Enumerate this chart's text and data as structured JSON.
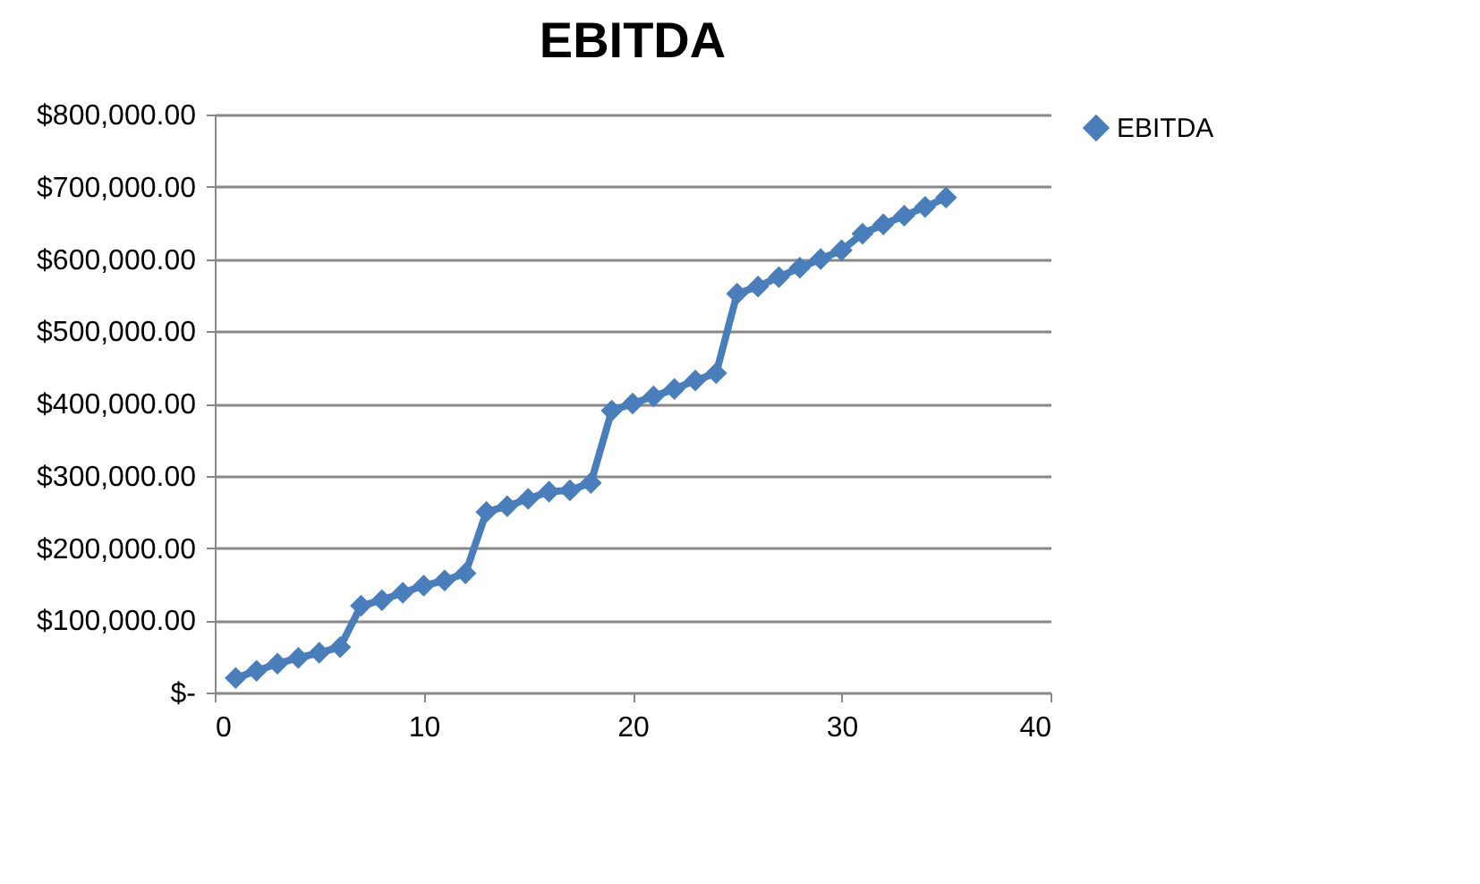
{
  "chart_data": {
    "type": "line",
    "title": "EBITDA",
    "x": [
      1,
      2,
      3,
      4,
      5,
      6,
      7,
      8,
      9,
      10,
      11,
      12,
      13,
      14,
      15,
      16,
      17,
      18,
      19,
      20,
      21,
      22,
      23,
      24,
      25,
      26,
      27,
      28,
      29,
      30,
      31,
      32,
      33,
      34,
      35
    ],
    "series": [
      {
        "name": "EBITDA",
        "color": "#4a7ebb",
        "values": [
          20000,
          30000,
          40000,
          48000,
          55000,
          63000,
          120000,
          128000,
          138000,
          148000,
          155000,
          165000,
          250000,
          258000,
          268000,
          278000,
          280000,
          290000,
          390000,
          400000,
          410000,
          420000,
          432000,
          442000,
          552000,
          562000,
          575000,
          588000,
          600000,
          612000,
          635000,
          648000,
          660000,
          672000,
          685000
        ]
      }
    ],
    "xlim": [
      0,
      40
    ],
    "xticks": [
      0,
      10,
      20,
      30,
      40
    ],
    "ylim": [
      0,
      800000
    ],
    "yticks": [
      {
        "value": 0,
        "label": "$-"
      },
      {
        "value": 100000,
        "label": "$100,000.00"
      },
      {
        "value": 200000,
        "label": "$200,000.00"
      },
      {
        "value": 300000,
        "label": "$300,000.00"
      },
      {
        "value": 400000,
        "label": "$400,000.00"
      },
      {
        "value": 500000,
        "label": "$500,000.00"
      },
      {
        "value": 600000,
        "label": "$600,000.00"
      },
      {
        "value": 700000,
        "label": "$700,000.00"
      },
      {
        "value": 800000,
        "label": "$800,000.00"
      }
    ],
    "grid": "y",
    "legend": "right",
    "marker": "diamond",
    "line_style": "solid"
  }
}
